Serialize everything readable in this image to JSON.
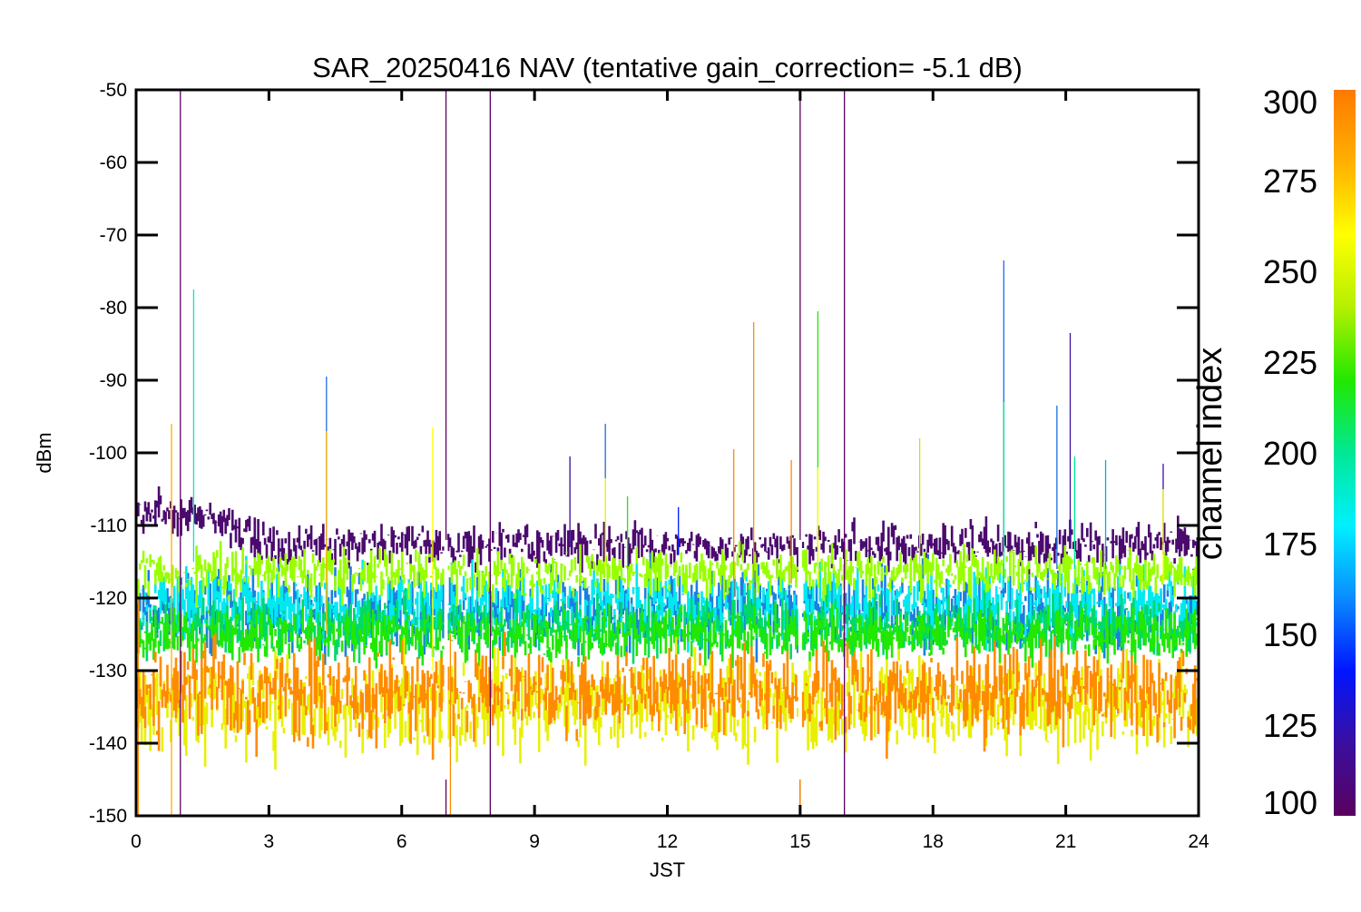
{
  "chart_data": {
    "type": "line",
    "title": "SAR_20250416 NAV (tentative gain_correction= -5.1 dB)",
    "xlabel": "JST",
    "ylabel": "dBm",
    "xlim": [
      0,
      24
    ],
    "ylim": [
      -150,
      -50
    ],
    "x_ticks": [
      0,
      3,
      6,
      9,
      12,
      15,
      18,
      21,
      24
    ],
    "x_tick_labels": [
      "0",
      "3",
      "6",
      "9",
      "12",
      "15",
      "18",
      "21",
      "24"
    ],
    "y_ticks": [
      -50,
      -60,
      -70,
      -80,
      -90,
      -100,
      -110,
      -120,
      -130,
      -140,
      -150
    ],
    "y_tick_labels": [
      "-50",
      "-60",
      "-70",
      "-80",
      "-90",
      "-100",
      "-110",
      "-120",
      "-130",
      "-140",
      "-150"
    ],
    "grid": false,
    "data_gaps_hours": [
      7.0,
      15.0
    ],
    "colorbar": {
      "label": "channel index",
      "range": [
        100,
        300
      ],
      "ticks": [
        100,
        125,
        150,
        175,
        200,
        225,
        250,
        275,
        300
      ],
      "tick_labels": [
        "100",
        "125",
        "150",
        "175",
        "200",
        "225",
        "250",
        "275",
        "300"
      ],
      "colormap": [
        "#5a005f",
        "#3a0fa0",
        "#0016ff",
        "#0a8cff",
        "#00f0ff",
        "#00e896",
        "#22e800",
        "#b4f000",
        "#ffff00",
        "#ffb000",
        "#ff7a00"
      ]
    },
    "bands": [
      {
        "channel": 110,
        "color": "#4b0a6e",
        "center_dbm": -112.8,
        "spread_db": 1.6,
        "early_center_dbm": -108.5,
        "early_until_hours": 2.2
      },
      {
        "channel": 160,
        "color": "#1a7fe0",
        "center_dbm": -121.5,
        "spread_db": 3.0
      },
      {
        "channel": 180,
        "color": "#00e8f0",
        "center_dbm": -121.0,
        "spread_db": 2.6
      },
      {
        "channel": 205,
        "color": "#00d86a",
        "center_dbm": -124.0,
        "spread_db": 2.2
      },
      {
        "channel": 230,
        "color": "#22e800",
        "center_dbm": -125.0,
        "spread_db": 2.0
      },
      {
        "channel": 260,
        "color": "#99ff00",
        "center_dbm": -116.5,
        "spread_db": 1.8
      },
      {
        "channel": 270,
        "color": "#e8f000",
        "center_dbm": -134.5,
        "spread_db": 3.6
      },
      {
        "channel": 290,
        "color": "#ff8c00",
        "center_dbm": -133.0,
        "spread_db": 3.4
      }
    ],
    "spikes": [
      {
        "x": 0.05,
        "y_top": -120,
        "y_bottom": -150,
        "color": "#ff8c00"
      },
      {
        "x": 0.8,
        "y_top": -96,
        "y_bottom": -150,
        "color": "#ffb000"
      },
      {
        "x": 1.0,
        "y_top": -50,
        "y_bottom": -150,
        "color": "#5a005f"
      },
      {
        "x": 1.3,
        "y_top": -77.5,
        "y_bottom": -115,
        "color": "#00e8c8"
      },
      {
        "x": 4.3,
        "y_top": -89.5,
        "y_bottom": -113,
        "color": "#1a6fe0"
      },
      {
        "x": 4.3,
        "y_top": -97,
        "y_bottom": -125,
        "color": "#ffb000"
      },
      {
        "x": 6.7,
        "y_top": -96.5,
        "y_bottom": -130,
        "color": "#ffff00"
      },
      {
        "x": 7.0,
        "y_top": -50,
        "y_bottom": -150,
        "color": "#5a005f"
      },
      {
        "x": 7.1,
        "y_top": -125,
        "y_bottom": -150,
        "color": "#ff8c00"
      },
      {
        "x": 8.0,
        "y_top": -50,
        "y_bottom": -150,
        "color": "#5a005f"
      },
      {
        "x": 9.8,
        "y_top": -100.5,
        "y_bottom": -113,
        "color": "#3a0fa0"
      },
      {
        "x": 10.6,
        "y_top": -96,
        "y_bottom": -113,
        "color": "#1a6fe0"
      },
      {
        "x": 10.6,
        "y_top": -103.5,
        "y_bottom": -116,
        "color": "#ffff00"
      },
      {
        "x": 11.1,
        "y_top": -106,
        "y_bottom": -116,
        "color": "#22e800"
      },
      {
        "x": 12.25,
        "y_top": -107.5,
        "y_bottom": -114,
        "color": "#0016ff"
      },
      {
        "x": 13.5,
        "y_top": -99.5,
        "y_bottom": -120,
        "color": "#ff8c00"
      },
      {
        "x": 13.95,
        "y_top": -82,
        "y_bottom": -120,
        "color": "#ff8c00"
      },
      {
        "x": 14.8,
        "y_top": -101,
        "y_bottom": -118,
        "color": "#ff8c00"
      },
      {
        "x": 15.0,
        "y_top": -50,
        "y_bottom": -150,
        "color": "#5a005f"
      },
      {
        "x": 15.0,
        "y_top": -125,
        "y_bottom": -150,
        "color": "#ff8c00"
      },
      {
        "x": 15.4,
        "y_top": -80.5,
        "y_bottom": -116,
        "color": "#22e800"
      },
      {
        "x": 15.4,
        "y_top": -102,
        "y_bottom": -118,
        "color": "#ffff00"
      },
      {
        "x": 16.0,
        "y_top": -50,
        "y_bottom": -150,
        "color": "#5a005f"
      },
      {
        "x": 17.7,
        "y_top": -98,
        "y_bottom": -116,
        "color": "#b4f000"
      },
      {
        "x": 19.6,
        "y_top": -73.5,
        "y_bottom": -112,
        "color": "#1a6fe0"
      },
      {
        "x": 19.6,
        "y_top": -93,
        "y_bottom": -118,
        "color": "#00e896"
      },
      {
        "x": 20.8,
        "y_top": -93.5,
        "y_bottom": -116,
        "color": "#1a6fe0"
      },
      {
        "x": 21.1,
        "y_top": -83.5,
        "y_bottom": -112,
        "color": "#3a0fa0"
      },
      {
        "x": 21.2,
        "y_top": -100.5,
        "y_bottom": -116,
        "color": "#00e896"
      },
      {
        "x": 21.9,
        "y_top": -101,
        "y_bottom": -116,
        "color": "#00b0d8"
      },
      {
        "x": 23.2,
        "y_top": -101.5,
        "y_bottom": -114,
        "color": "#3a0fa0"
      },
      {
        "x": 23.2,
        "y_top": -105,
        "y_bottom": -118,
        "color": "#ffff00"
      }
    ]
  }
}
